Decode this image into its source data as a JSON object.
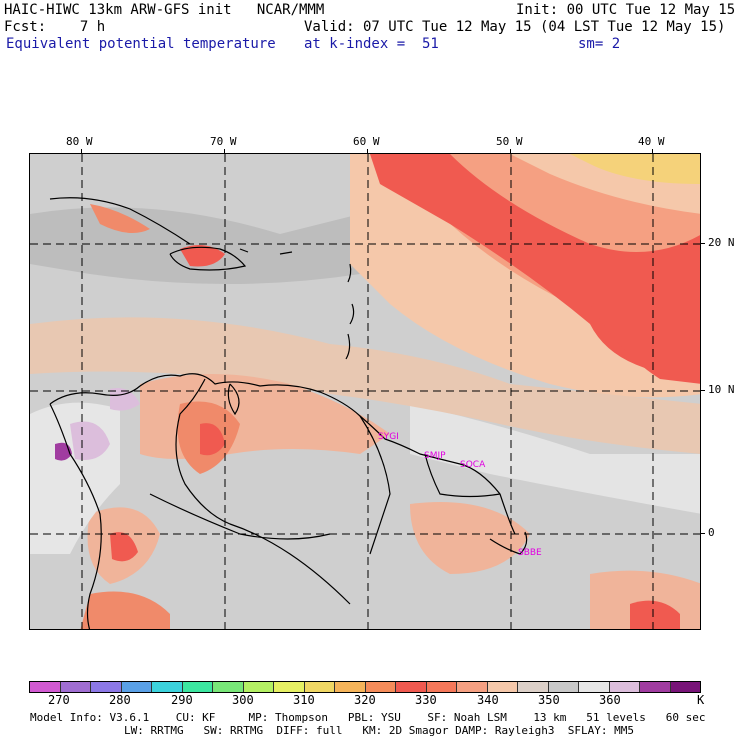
{
  "header": {
    "line1_left": "HAIC-HIWC 13km ARW-GFS init   NCAR/MMM",
    "line1_right": "Init: 00 UTC Tue 12 May 15",
    "line2_left": "Fcst:    7 h",
    "line2_right": "Valid: 07 UTC Tue 12 May 15 (04 LST Tue 12 May 15)",
    "line3_left": "Equivalent potential temperature",
    "line3_mid": "at k-index =  51",
    "line3_right": "sm= 2"
  },
  "axes": {
    "lon_labels": [
      "80 W",
      "70 W",
      "60 W",
      "50 W",
      "40 W"
    ],
    "lat_labels": [
      "20 N",
      "10 N",
      "0"
    ]
  },
  "stations": [
    "SYGI",
    "SMJP",
    "SOCA",
    "SBBE"
  ],
  "colorbar": {
    "colors": [
      "#d25ad2",
      "#a06ed2",
      "#8c78e6",
      "#5aa0e6",
      "#3cd2dc",
      "#3ce6a0",
      "#78e678",
      "#b4f064",
      "#e6f064",
      "#f0d764",
      "#f5b45a",
      "#f58c5a",
      "#f05a50",
      "#f5785a",
      "#f5a082",
      "#f5c8aa",
      "#dcd0c8",
      "#c8c8c8",
      "#e6e6e6",
      "#dcbedc",
      "#a03ca0",
      "#781478"
    ],
    "labels": [
      "270",
      "280",
      "290",
      "300",
      "310",
      "320",
      "330",
      "340",
      "350",
      "360"
    ],
    "unit": "K"
  },
  "footer": {
    "line1": "Model Info: V3.6.1    CU: KF     MP: Thompson   PBL: YSU    SF: Noah LSM    13 km   51 levels   60 sec",
    "line2": "LW: RRTMG   SW: RRTMG  DIFF: full   KM: 2D Smagor DAMP: Rayleigh3  SFLAY: MM5"
  }
}
